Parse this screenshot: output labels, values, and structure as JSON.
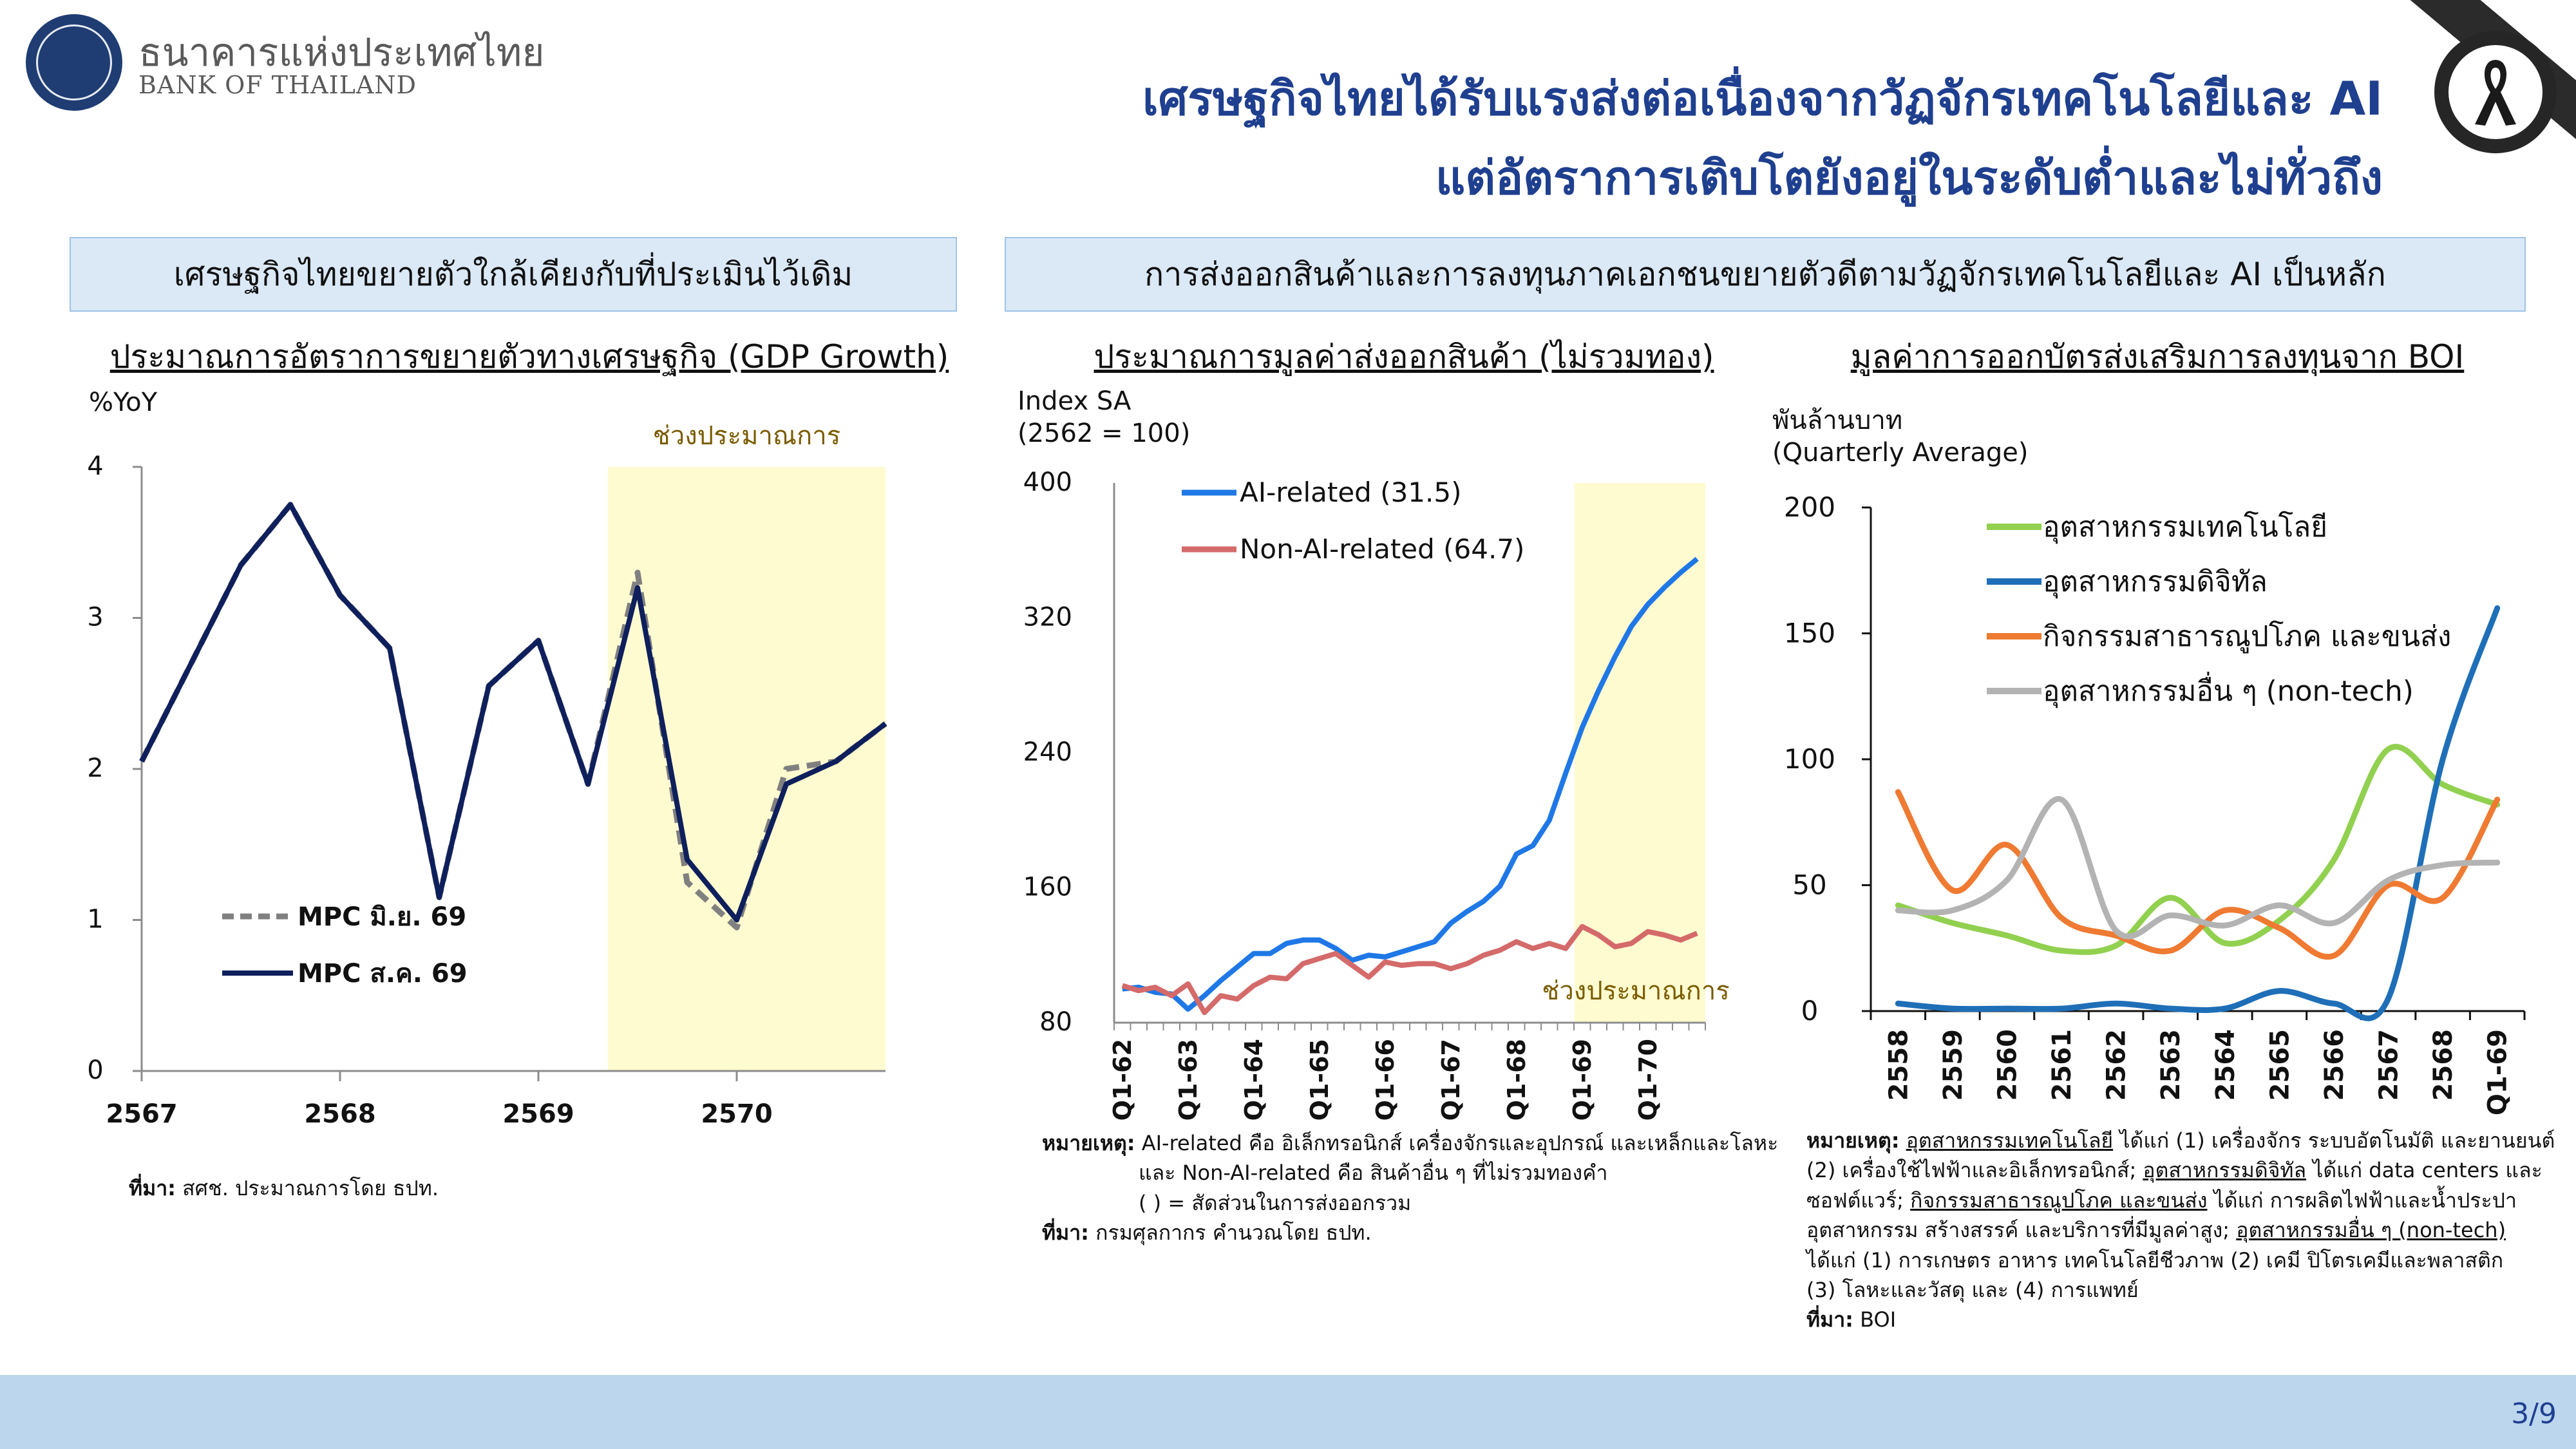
{
  "header": {
    "logo_th": "ธนาคารแห่งประเทศไทย",
    "logo_en": "BANK OF THAILAND",
    "title_line1": "เศรษฐกิจไทยได้รับแรงส่งต่อเนื่องจากวัฏจักรเทคโนโลยีและ AI",
    "title_line2": "แต่อัตราการเติบโตยังอยู่ในระดับต่ำและไม่ทั่วถึง"
  },
  "panels": {
    "left_heading": "เศรษฐกิจไทยขยายตัวใกล้เคียงกับที่ประเมินไว้เดิม",
    "right_heading": "การส่งออกสินค้าและการลงทุนภาคเอกชนขยายตัวดีตามวัฏจักรเทคโนโลยีและ AI เป็นหลัก"
  },
  "colors": {
    "navy": "#0e1f5c",
    "gray_dashed": "#808080",
    "blue": "#1f78e6",
    "red": "#d46a6a",
    "green": "#92d050",
    "dark_blue": "#1f6fb8",
    "orange": "#ef7a32",
    "light_gray": "#b3b3b3",
    "forecast_fill": "#fffbd0",
    "title_blue": "#1f3f8f"
  },
  "chart_data": [
    {
      "type": "line",
      "title": "ประมาณการอัตราการขยายตัวทางเศรษฐกิจ (GDP Growth)",
      "ylabel": "%YoY",
      "ylim": [
        0,
        4
      ],
      "yticks": [
        "0",
        "1",
        "2",
        "3",
        "4"
      ],
      "xticks": [
        "2567",
        "2568",
        "2569",
        "2570"
      ],
      "shade_label": "ช่วงประมาณการ",
      "shade_range": [
        2569.35,
        2570.75
      ],
      "x": [
        2567.0,
        2567.25,
        2567.5,
        2567.75,
        2568.0,
        2568.25,
        2568.5,
        2568.75,
        2569.0,
        2569.25,
        2569.5,
        2569.75,
        2570.0,
        2570.25,
        2570.5,
        2570.75
      ],
      "series": [
        {
          "name": "MPC มิ.ย. 69",
          "style": "dashed",
          "values": [
            2.05,
            2.7,
            3.35,
            3.75,
            3.15,
            2.8,
            1.15,
            2.55,
            2.85,
            1.9,
            3.3,
            1.25,
            0.95,
            2.0,
            2.05,
            2.3
          ]
        },
        {
          "name": "MPC ส.ค. 69",
          "style": "solid",
          "values": [
            2.05,
            2.7,
            3.35,
            3.75,
            3.15,
            2.8,
            1.15,
            2.55,
            2.85,
            1.9,
            3.2,
            1.4,
            1.0,
            1.9,
            2.05,
            2.3
          ]
        }
      ],
      "source_label": "ที่มา:",
      "source_text": "สศช. ประมาณการโดย ธปท."
    },
    {
      "type": "line",
      "title": "ประมาณการมูลค่าส่งออกสินค้า (ไม่รวมทอง)",
      "ylabel_line1": "Index SA",
      "ylabel_line2": "(2562 = 100)",
      "ylim": [
        80,
        400
      ],
      "yticks": [
        "80",
        "160",
        "240",
        "320",
        "400"
      ],
      "xticks": [
        "Q1-62",
        "Q1-63",
        "Q1-64",
        "Q1-65",
        "Q1-66",
        "Q1-67",
        "Q1-68",
        "Q1-69",
        "Q1-70"
      ],
      "shade_label": "ช่วงประมาณการ",
      "quarters_start": "Q1-62",
      "series": [
        {
          "name": "AI-related (31.5)",
          "values": [
            100,
            101,
            98,
            97,
            88,
            96,
            105,
            113,
            121,
            121,
            127,
            129,
            129,
            124,
            117,
            120,
            119,
            122,
            125,
            128,
            139,
            146,
            152,
            161,
            180,
            185,
            200,
            228,
            255,
            277,
            297,
            315,
            328,
            338,
            347,
            355
          ]
        },
        {
          "name": "Non-AI-related (64.7)",
          "values": [
            102,
            99,
            101,
            96,
            103,
            86,
            96,
            94,
            102,
            107,
            106,
            115,
            118,
            121,
            114,
            107,
            116,
            114,
            115,
            115,
            112,
            115,
            120,
            123,
            128,
            124,
            127,
            124,
            137,
            132,
            125,
            127,
            134,
            132,
            129,
            133
          ]
        }
      ],
      "note_label": "หมายเหตุ:",
      "note_line1": "AI-related คือ อิเล็กทรอนิกส์ เครื่องจักรและอุปกรณ์ และเหล็กและโลหะ",
      "note_line2": "และ Non-AI-related คือ สินค้าอื่น ๆ ที่ไม่รวมทองคำ",
      "note_line3": "( ) = สัดส่วนในการส่งออกรวม",
      "source_label": "ที่มา:",
      "source_text": "กรมศุลกากร คำนวณโดย ธปท."
    },
    {
      "type": "line",
      "title": "มูลค่าการออกบัตรส่งเสริมการลงทุนจาก BOI",
      "ylabel_line1": "พันล้านบาท",
      "ylabel_line2": "(Quarterly Average)",
      "ylim": [
        0,
        200
      ],
      "yticks": [
        "0",
        "50",
        "100",
        "150",
        "200"
      ],
      "xticks": [
        "2558",
        "2559",
        "2560",
        "2561",
        "2562",
        "2563",
        "2564",
        "2565",
        "2566",
        "2567",
        "2568",
        "Q1-69"
      ],
      "series": [
        {
          "name": "อุตสาหกรรมเทคโนโลยี",
          "values": [
            42,
            35,
            30,
            24,
            26,
            45,
            27,
            36,
            60,
            104,
            90,
            82
          ]
        },
        {
          "name": "อุตสาหกรรมดิจิทัล",
          "values": [
            3,
            1,
            1,
            1,
            3,
            1,
            1,
            8,
            3,
            5,
            100,
            160
          ]
        },
        {
          "name": "กิจกรรมสาธารณูปโภค และขนส่ง",
          "values": [
            87,
            48,
            66,
            37,
            30,
            24,
            40,
            33,
            22,
            50,
            45,
            84
          ]
        },
        {
          "name": "อุตสาหกรรมอื่น ๆ (non-tech)",
          "values": [
            40,
            40,
            52,
            84,
            32,
            38,
            34,
            42,
            35,
            52,
            58,
            59
          ]
        }
      ],
      "note_label": "หมายเหตุ:",
      "note_parts": [
        {
          "u": "อุตสาหกรรมเทคโนโลยี",
          "t": " ได้แก่ (1) เครื่องจักร ระบบอัตโนมัติ และยานยนต์"
        },
        {
          "u": "",
          "t": "(2) เครื่องใช้ไฟฟ้าและอิเล็กทรอนิกส์; "
        },
        {
          "u": "อุตสาหกรรมดิจิทัล",
          "t": " ได้แก่ data centers และ"
        },
        {
          "u": "",
          "t": "ซอฟต์แวร์; "
        },
        {
          "u": "กิจกรรมสาธารณูปโภค และขนส่ง",
          "t": " ได้แก่ การผลิตไฟฟ้าและน้ำประปา"
        },
        {
          "u": "",
          "t": "อุตสาหกรรม สร้างสรรค์ และบริการที่มีมูลค่าสูง; "
        },
        {
          "u": "อุตสาหกรรมอื่น ๆ (non-tech)",
          "t": ""
        },
        {
          "u": "",
          "t": "ได้แก่ (1) การเกษตร อาหาร เทคโนโลยีชีวภาพ (2) เคมี ปิโตรเคมีและพลาสติก"
        },
        {
          "u": "",
          "t": "(3) โลหะและวัสดุ และ (4) การแพทย์"
        }
      ],
      "source_label": "ที่มา:",
      "source_text": "BOI"
    }
  ],
  "footer": {
    "page": "3/9"
  }
}
